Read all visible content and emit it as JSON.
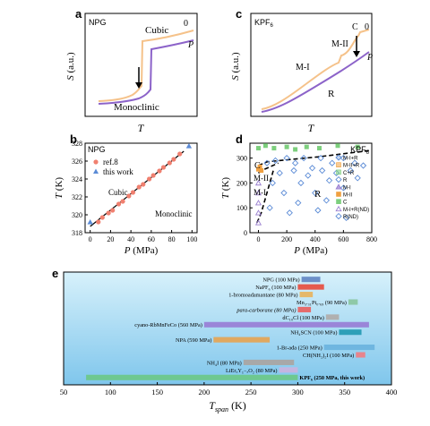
{
  "colors": {
    "orange": "#F5C28A",
    "purple": "#8C63C9",
    "red_point": "#F08070",
    "blue_point": "#5B8BD6",
    "green": "#7DCF7D",
    "panel_e_gradient_top": "#D7F1FB",
    "panel_e_gradient_bottom": "#7FC6EC"
  },
  "panels": {
    "a": {
      "letter": "a",
      "tag": "NPG",
      "xlabel": "T",
      "ylabel": "S (a.u.)",
      "labels": {
        "cubic": "Cubic",
        "monoclinic": "Monoclinic",
        "zero": "0",
        "p": "P"
      }
    },
    "c": {
      "letter": "c",
      "tag": "KPF",
      "tag_sub": "6",
      "xlabel": "T",
      "ylabel": "S (a.u.)",
      "labels": {
        "c": "C",
        "m2": "M-II",
        "m1": "M-I",
        "r": "R",
        "zero": "0",
        "p": "P"
      }
    },
    "b": {
      "letter": "b"
    },
    "d": {
      "letter": "d"
    },
    "e": {
      "letter": "e"
    }
  },
  "chart_data": [
    {
      "id": "b",
      "type": "scatter",
      "tag": "NPG",
      "xlabel": "P (MPa)",
      "ylabel": "T (K)",
      "xlim": [
        -5,
        105
      ],
      "ylim": [
        318,
        328
      ],
      "xticks": [
        0,
        20,
        40,
        60,
        80,
        100
      ],
      "yticks": [
        318,
        320,
        322,
        324,
        326,
        328
      ],
      "region_labels": {
        "cubic": "Cubic",
        "monoclinic": "Monoclinic"
      },
      "fit_line": {
        "x": [
          0,
          92
        ],
        "y": [
          318.7,
          327.1
        ]
      },
      "series": [
        {
          "name": "ref.8",
          "marker": "circle",
          "x": [
            8,
            12,
            18,
            22,
            28,
            32,
            38,
            42,
            48,
            52,
            58,
            62,
            68,
            72,
            78,
            82,
            88
          ],
          "y": [
            319.2,
            319.7,
            320.2,
            320.5,
            321.2,
            321.5,
            322.1,
            322.5,
            323.1,
            323.4,
            324.0,
            324.4,
            324.9,
            325.3,
            325.8,
            326.2,
            326.8
          ]
        },
        {
          "name": "this work",
          "marker": "triangle",
          "x": [
            0,
            97
          ],
          "y": [
            319.2,
            327.7
          ]
        }
      ]
    },
    {
      "id": "d",
      "type": "scatter",
      "tag": "KPF",
      "tag_sub": "6",
      "xlabel": "P (MPa)",
      "ylabel": "T (K)",
      "xlim": [
        -60,
        800
      ],
      "ylim": [
        0,
        360
      ],
      "xticks": [
        0,
        200,
        400,
        600,
        800
      ],
      "yticks": [
        0,
        100,
        200,
        300
      ],
      "region_labels": {
        "c": "C",
        "m2": "M-II",
        "m1": "M-I",
        "r": "R"
      },
      "legend": [
        {
          "name": "M-I+R",
          "marker": "diamond-half"
        },
        {
          "name": "M-II+R",
          "marker": "square-half-orange"
        },
        {
          "name": "C+R",
          "marker": "square-half-green"
        },
        {
          "name": "R",
          "marker": "diamond"
        },
        {
          "name": "M-I",
          "marker": "triangle"
        },
        {
          "name": "M-II",
          "marker": "square-orange"
        },
        {
          "name": "C",
          "marker": "square-green"
        },
        {
          "name": "M-I+R(ND)",
          "marker": "triangle-open"
        },
        {
          "name": "R(ND)",
          "marker": "diamond-open"
        }
      ],
      "boundaries": [
        {
          "x": [
            0,
            60,
            180,
            420,
            780
          ],
          "y": [
            270,
            285,
            292,
            305,
            330
          ]
        },
        {
          "x": [
            0,
            30,
            70,
            140
          ],
          "y": [
            240,
            252,
            262,
            280
          ]
        },
        {
          "x": [
            -10,
            20,
            60,
            110
          ],
          "y": [
            40,
            80,
            160,
            260
          ]
        }
      ],
      "series": [
        {
          "name": "C",
          "x": [
            0,
            50,
            110,
            200,
            260,
            340,
            430,
            560,
            700
          ],
          "y": [
            340,
            350,
            340,
            345,
            335,
            345,
            340,
            350,
            345
          ]
        },
        {
          "name": "M-II",
          "x": [
            0,
            10,
            20
          ],
          "y": [
            255,
            265,
            250
          ]
        },
        {
          "name": "M-I",
          "x": [
            0,
            0,
            0,
            0,
            0
          ],
          "y": [
            200,
            160,
            120,
            80,
            40
          ]
        },
        {
          "name": "R",
          "x": [
            60,
            120,
            200,
            260,
            320,
            380,
            440,
            520,
            600,
            680,
            740,
            150,
            250,
            350,
            450,
            550,
            650,
            100,
            300,
            500,
            700,
            180,
            400,
            600,
            280,
            480,
            80,
            220,
            420,
            620
          ],
          "y": [
            280,
            290,
            300,
            280,
            300,
            260,
            300,
            280,
            300,
            280,
            270,
            240,
            250,
            230,
            250,
            240,
            250,
            200,
            200,
            210,
            220,
            160,
            160,
            180,
            120,
            130,
            100,
            80,
            90,
            60
          ]
        }
      ]
    },
    {
      "id": "e",
      "type": "bar",
      "orientation": "horizontal",
      "xlabel": "T_span (K)",
      "xlabel_main": "T",
      "xlabel_sub": "span",
      "xlabel_unit": " (K)",
      "xlim": [
        50,
        400
      ],
      "xticks": [
        50,
        100,
        150,
        200,
        250,
        300,
        350,
        400
      ],
      "bars": [
        {
          "label": "NPG (100 MPa)",
          "start": 304,
          "end": 324,
          "color": "#6B8FC8",
          "bold": false
        },
        {
          "label": "NaPF₆ (100 MPa)",
          "start": 300,
          "end": 328,
          "color": "#E55A4E",
          "bold": false
        },
        {
          "label": "1-bromoadamantane (80 MPa)",
          "start": 302,
          "end": 316,
          "color": "#E5B86B",
          "bold": false
        },
        {
          "label": "Mn₃.₃₁Pt₀.₆₉ (90 MPa)",
          "start": 354,
          "end": 364,
          "color": "#8FC9A8",
          "bold": false
        },
        {
          "label": "para-carborane (80 MPa)",
          "start": 300,
          "end": 314,
          "color": "#E56B6B",
          "bold": false
        },
        {
          "label": "dC₁₀Cl (100 MPa)",
          "start": 330,
          "end": 344,
          "color": "#B0B0B0",
          "bold": false
        },
        {
          "label": "cyano-RbMnFeCo (560 MPa)",
          "start": 200,
          "end": 376,
          "color": "#9A85D8",
          "bold": false
        },
        {
          "label": "NH₄SCN (100 MPa)",
          "start": 344,
          "end": 368,
          "color": "#2E9FB8",
          "bold": false
        },
        {
          "label": "NPA (590 MPa)",
          "start": 210,
          "end": 270,
          "color": "#E0A860",
          "bold": false
        },
        {
          "label": "1-Br-ada (250 MPa)",
          "start": 328,
          "end": 382,
          "color": "#6FB6E0",
          "bold": false
        },
        {
          "label": "CH(NH₂)₂I (100 MPa)",
          "start": 362,
          "end": 372,
          "color": "#E8848C",
          "bold": false
        },
        {
          "label": "NH₄I (80 MPa)",
          "start": 242,
          "end": 296,
          "color": "#A8A8A8",
          "bold": false
        },
        {
          "label": "LiErₓY₁₋ₓO₂ (80 MPa)",
          "start": 280,
          "end": 300,
          "color": "#C4B5E0",
          "bold": false
        },
        {
          "label": "KPF₆ (250 MPa, this work)",
          "start": 74,
          "end": 300,
          "color": "#6EC890",
          "bold": true
        }
      ]
    }
  ]
}
